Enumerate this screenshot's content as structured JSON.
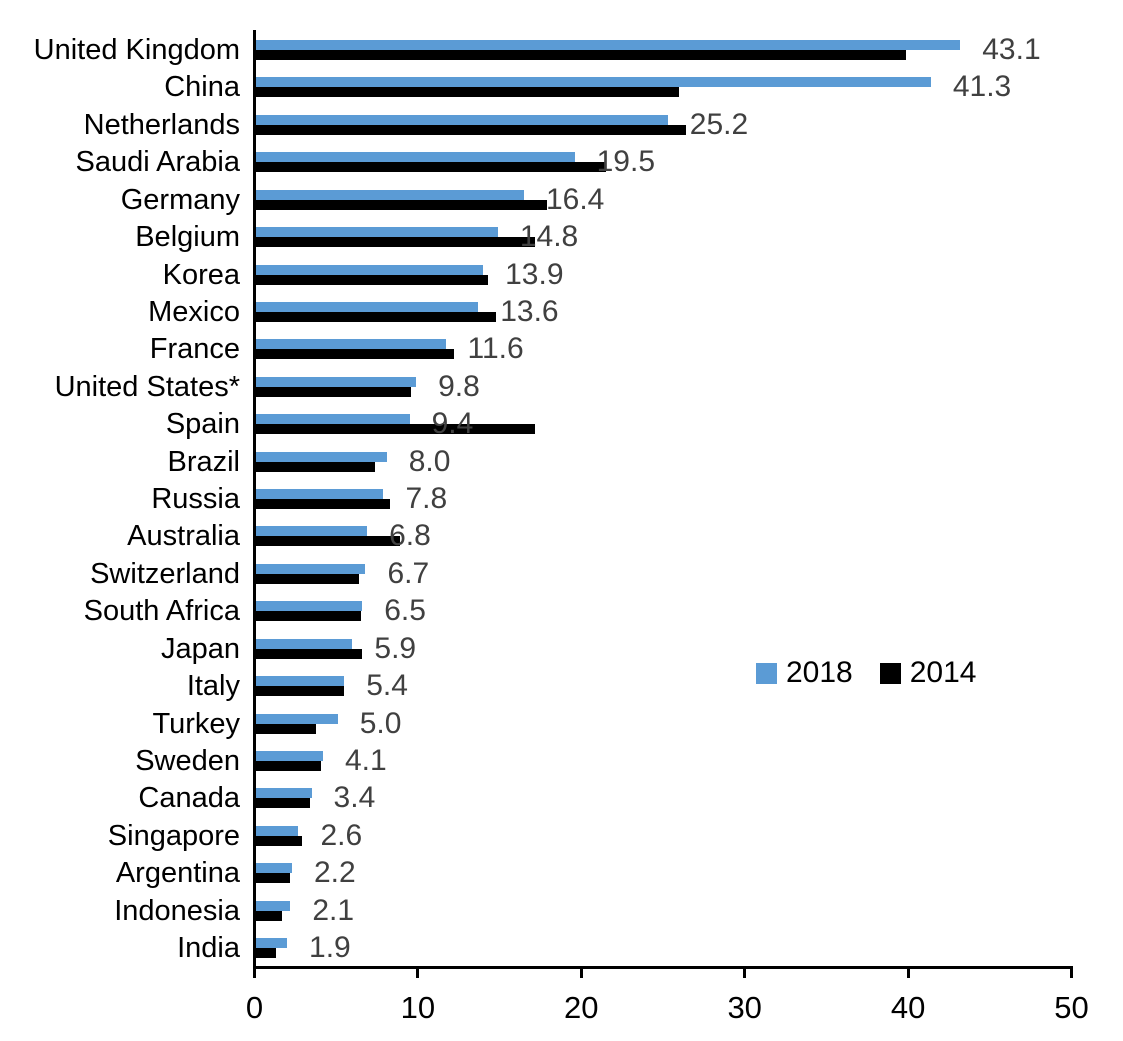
{
  "chart_data": {
    "type": "bar",
    "orientation": "horizontal",
    "title": "",
    "xlabel": "",
    "ylabel": "",
    "xlim": [
      0,
      50
    ],
    "x_ticks": [
      0,
      10,
      20,
      30,
      40,
      50
    ],
    "grid": false,
    "legend_position": "middle-right",
    "categories": [
      "United Kingdom",
      "China",
      "Netherlands",
      "Saudi Arabia",
      "Germany",
      "Belgium",
      "Korea",
      "Mexico",
      "France",
      "United States*",
      "Spain",
      "Brazil",
      "Russia",
      "Australia",
      "Switzerland",
      "South Africa",
      "Japan",
      "Italy",
      "Turkey",
      "Sweden",
      "Canada",
      "Singapore",
      "Argentina",
      "Indonesia",
      "India"
    ],
    "series": [
      {
        "name": "2018",
        "color": "#5B9BD5",
        "labeled": true,
        "values": [
          43.1,
          41.3,
          25.2,
          19.5,
          16.4,
          14.8,
          13.9,
          13.6,
          11.6,
          9.8,
          9.4,
          8.0,
          7.8,
          6.8,
          6.7,
          6.5,
          5.9,
          5.4,
          5.0,
          4.1,
          3.4,
          2.6,
          2.2,
          2.1,
          1.9
        ]
      },
      {
        "name": "2014",
        "color": "#000000",
        "labeled": false,
        "values": [
          39.8,
          25.9,
          26.3,
          21.4,
          17.8,
          17.1,
          14.2,
          14.7,
          12.1,
          9.5,
          17.1,
          7.3,
          8.2,
          8.8,
          6.3,
          6.4,
          6.5,
          5.4,
          3.7,
          4.0,
          3.3,
          2.8,
          2.1,
          1.6,
          1.2
        ]
      }
    ],
    "data_labels": [
      "43.1",
      "41.3",
      "25.2",
      "19.5",
      "16.4",
      "14.8",
      "13.9",
      "13.6",
      "11.6",
      "9.8",
      "9.4",
      "8.0",
      "7.8",
      "6.8",
      "6.7",
      "6.5",
      "5.9",
      "5.4",
      "5.0",
      "4.1",
      "3.4",
      "2.6",
      "2.2",
      "2.1",
      "1.9"
    ],
    "data_label_color": "#404040",
    "axis_color": "#000000",
    "text_color": "#000000"
  }
}
